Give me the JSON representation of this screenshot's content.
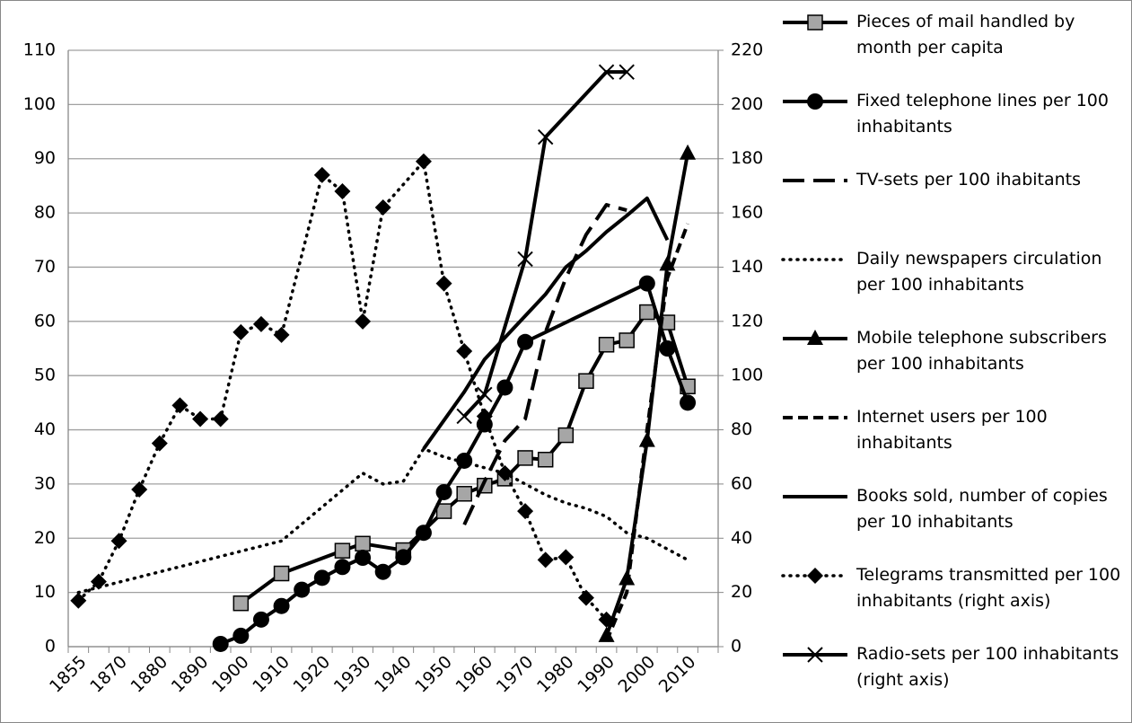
{
  "chart_data": {
    "type": "line",
    "categories": [
      "1855",
      null,
      "1870",
      null,
      "1880",
      null,
      "1890",
      null,
      "1900",
      null,
      "1910",
      null,
      "1920",
      null,
      "1930",
      null,
      "1940",
      null,
      "1950",
      null,
      "1960",
      null,
      "1970",
      null,
      "1980",
      null,
      "1990",
      null,
      "2000",
      null,
      "2010",
      null
    ],
    "ylim": [
      0,
      110
    ],
    "yticks": [
      0,
      10,
      20,
      30,
      40,
      50,
      60,
      70,
      80,
      90,
      100,
      110
    ],
    "y2lim": [
      0,
      220
    ],
    "y2ticks": [
      0,
      20,
      40,
      60,
      80,
      100,
      120,
      140,
      160,
      180,
      200,
      220
    ],
    "grid": true,
    "connect_gaps": true,
    "legend": "right",
    "series": [
      {
        "name": "Pieces of mail handled by month per capita",
        "color": "#000000",
        "marker": "square",
        "marker_color": "#a6a6a6",
        "dash": "solid",
        "values": [
          null,
          null,
          null,
          null,
          null,
          null,
          null,
          null,
          8,
          null,
          13.5,
          null,
          null,
          17.7,
          19,
          null,
          17.8,
          null,
          25,
          28.2,
          29.7,
          31,
          34.8,
          34.5,
          39,
          49,
          55.7,
          56.5,
          61.7,
          59.8,
          48,
          null
        ]
      },
      {
        "name": "Fixed telephone lines per 100 inhabitants",
        "color": "#000000",
        "marker": "circle",
        "marker_color": "#000000",
        "dash": "solid",
        "values": [
          null,
          null,
          null,
          null,
          null,
          null,
          null,
          0.5,
          2,
          5,
          7.5,
          10.5,
          12.7,
          14.7,
          16.4,
          13.8,
          16.5,
          21,
          28.5,
          34.3,
          41,
          47.8,
          56.2,
          null,
          null,
          null,
          null,
          null,
          67,
          55,
          45,
          null
        ]
      },
      {
        "name": "TV-sets per 100 ihabitants",
        "color": "#000000",
        "marker": "none",
        "dash": "long",
        "values": [
          null,
          null,
          null,
          null,
          null,
          null,
          null,
          null,
          null,
          null,
          null,
          null,
          null,
          null,
          null,
          null,
          null,
          null,
          null,
          22.5,
          30.5,
          38,
          42,
          58,
          68,
          76,
          81.5,
          80.5,
          null,
          null,
          null,
          null
        ]
      },
      {
        "name": "Daily newspapers circulation per 100 inhabitants",
        "color": "#000000",
        "marker": "none",
        "dash": "dot",
        "values": [
          10,
          null,
          null,
          null,
          null,
          null,
          null,
          null,
          null,
          null,
          19.5,
          null,
          null,
          null,
          32,
          30,
          30.5,
          36.5,
          35,
          34,
          33,
          32,
          30,
          28,
          26.5,
          25.5,
          24,
          21,
          20,
          18,
          16,
          null
        ]
      },
      {
        "name": "Mobile telephone subscribers per 100 inhabitants",
        "color": "#000000",
        "marker": "triangle",
        "marker_color": "#000000",
        "dash": "solid",
        "values": [
          null,
          null,
          null,
          null,
          null,
          null,
          null,
          null,
          null,
          null,
          null,
          null,
          null,
          null,
          null,
          null,
          null,
          null,
          null,
          null,
          null,
          null,
          null,
          null,
          null,
          null,
          2,
          12.5,
          38,
          70.5,
          91,
          null
        ]
      },
      {
        "name": "Internet users per 100 inhabitants",
        "color": "#000000",
        "marker": "none",
        "dash": "short",
        "values": [
          null,
          null,
          null,
          null,
          null,
          null,
          null,
          null,
          null,
          null,
          null,
          null,
          null,
          null,
          null,
          null,
          null,
          null,
          null,
          null,
          null,
          null,
          null,
          null,
          null,
          null,
          1,
          10,
          40,
          68,
          78,
          null
        ]
      },
      {
        "name": "Books sold, number of copies per 10 inhabitants",
        "color": "#000000",
        "marker": "none",
        "dash": "solid",
        "values": [
          null,
          null,
          null,
          null,
          null,
          null,
          null,
          null,
          null,
          null,
          null,
          null,
          null,
          null,
          null,
          null,
          null,
          36.5,
          null,
          47,
          53,
          57,
          61,
          65,
          70,
          73,
          76.5,
          79.5,
          82.7,
          75,
          null,
          null
        ]
      },
      {
        "name": "Telegrams transmitted per 100 inhabitants (right axis)",
        "color": "#000000",
        "marker": "diamond",
        "marker_color": "#000000",
        "dash": "dot",
        "axis": "y2",
        "values": [
          17,
          24,
          39,
          58,
          75,
          89,
          84,
          84,
          116,
          119,
          115,
          null,
          174,
          168,
          120,
          162,
          null,
          179,
          134,
          109,
          85,
          64,
          50,
          32,
          33,
          18,
          10,
          null,
          null,
          null,
          null,
          null
        ]
      },
      {
        "name": "Radio-sets per 100 inhabitants (right axis)",
        "color": "#000000",
        "marker": "x",
        "marker_color": "#000000",
        "dash": "solid",
        "axis": "y2",
        "values": [
          null,
          null,
          null,
          null,
          null,
          null,
          null,
          null,
          null,
          null,
          null,
          null,
          null,
          null,
          null,
          null,
          null,
          null,
          null,
          85,
          93,
          null,
          143,
          188,
          null,
          null,
          212,
          212,
          null,
          null,
          null,
          null
        ]
      }
    ]
  }
}
